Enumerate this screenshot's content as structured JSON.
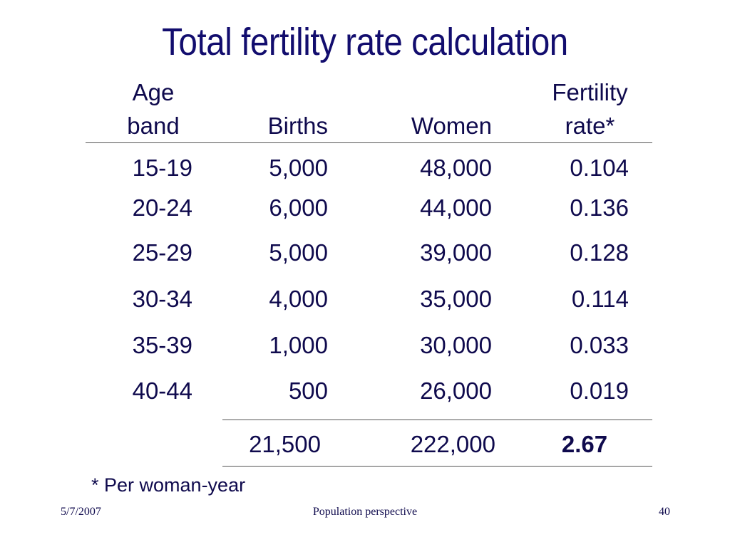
{
  "title": "Total fertility rate calculation",
  "table": {
    "headers": {
      "age_line1": "Age",
      "age_line2": "band",
      "births": "Births",
      "women": "Women",
      "rate_line1": "Fertility",
      "rate_line2": "rate*"
    },
    "rows": [
      {
        "age": "15-19",
        "births": "5,000",
        "women": "48,000",
        "rate": "0.104"
      },
      {
        "age": "20-24",
        "births": "6,000",
        "women": "44,000",
        "rate": "0.136"
      },
      {
        "age": "25-29",
        "births": "5,000",
        "women": "39,000",
        "rate": "0.128"
      },
      {
        "age": "30-34",
        "births": "4,000",
        "women": "35,000",
        "rate": "0.114"
      },
      {
        "age": "35-39",
        "births": "1,000",
        "women": "30,000",
        "rate": "0.033"
      },
      {
        "age": "40-44",
        "births": "500",
        "women": "26,000",
        "rate": "0.019"
      }
    ],
    "totals": {
      "births": "21,500",
      "women": "222,000",
      "rate": "2.67"
    }
  },
  "note": "* Per woman-year",
  "footer": {
    "date": "5/7/2007",
    "center": "Population perspective",
    "page": "40"
  }
}
